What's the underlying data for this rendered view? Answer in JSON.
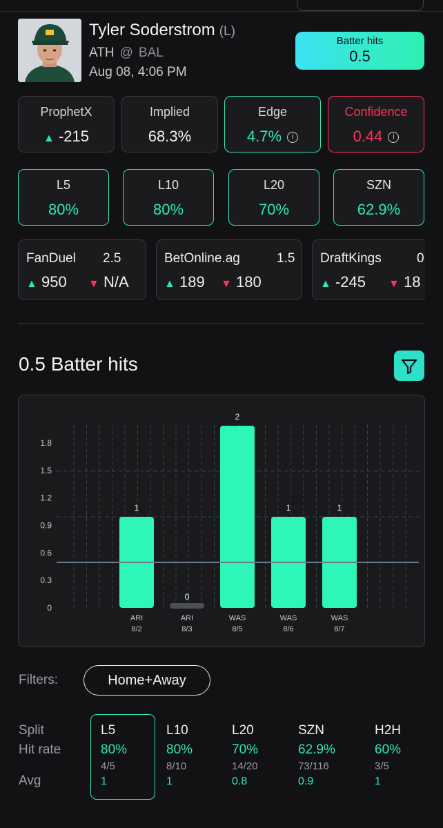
{
  "player": {
    "name": "Tyler Soderstrom",
    "hand": "(L)",
    "team": "ATH",
    "at": "@",
    "opponent": "BAL",
    "game_time": "Aug 08, 4:06 PM"
  },
  "market": {
    "label": "Batter hits",
    "line": "0.5"
  },
  "stats": {
    "prophetx": {
      "label": "ProphetX",
      "value": "-215"
    },
    "implied": {
      "label": "Implied",
      "value": "68.3%"
    },
    "edge": {
      "label": "Edge",
      "value": "4.7%"
    },
    "confidence": {
      "label": "Confidence",
      "value": "0.44"
    }
  },
  "hit_rates": [
    {
      "label": "L5",
      "value": "80%"
    },
    {
      "label": "L10",
      "value": "80%"
    },
    {
      "label": "L20",
      "value": "70%"
    },
    {
      "label": "SZN",
      "value": "62.9%"
    }
  ],
  "books": [
    {
      "name": "FanDuel",
      "line": "2.5",
      "over": "950",
      "under": "N/A"
    },
    {
      "name": "BetOnline.ag",
      "line": "1.5",
      "over": "189",
      "under": "180"
    },
    {
      "name": "DraftKings",
      "line": "0",
      "over": "-245",
      "under": "18"
    }
  ],
  "chart_title": "0.5 Batter hits",
  "chart_data": {
    "type": "bar",
    "categories": [
      "ARI 8/2",
      "ARI 8/3",
      "WAS 8/5",
      "WAS 8/6",
      "WAS 8/7"
    ],
    "opponents": [
      "ARI",
      "ARI",
      "WAS",
      "WAS",
      "WAS"
    ],
    "dates": [
      "8/2",
      "8/3",
      "8/5",
      "8/6",
      "8/7"
    ],
    "values": [
      1,
      0,
      2,
      1,
      1
    ],
    "value_labels": [
      "1",
      "0",
      "2",
      "1",
      "1"
    ],
    "yticks": [
      "1.8",
      "1.5",
      "1.2",
      "0.9",
      "0.6",
      "0.3",
      "0"
    ],
    "ylim": [
      0,
      2
    ],
    "line_value": 0.5,
    "colors": {
      "bar": "#2ef5b8",
      "zero_bar": "#4a4f55",
      "line": "#6b7a88",
      "grid": "#34414a"
    }
  },
  "filters": {
    "label": "Filters:",
    "selected": "Home+Away"
  },
  "splits_table": {
    "row_labels": {
      "split": "Split",
      "hit_rate": "Hit rate",
      "avg": "Avg"
    },
    "columns": [
      {
        "split": "L5",
        "rate": "80%",
        "frac": "4/5",
        "avg": "1"
      },
      {
        "split": "L10",
        "rate": "80%",
        "frac": "8/10",
        "avg": "1"
      },
      {
        "split": "L20",
        "rate": "70%",
        "frac": "14/20",
        "avg": "0.8"
      },
      {
        "split": "SZN",
        "rate": "62.9%",
        "frac": "73/116",
        "avg": "0.9"
      },
      {
        "split": "H2H",
        "rate": "60%",
        "frac": "3/5",
        "avg": "1"
      }
    ]
  },
  "colors": {
    "accent": "#2ee8b0",
    "negative": "#ff3358",
    "background": "#121214"
  }
}
